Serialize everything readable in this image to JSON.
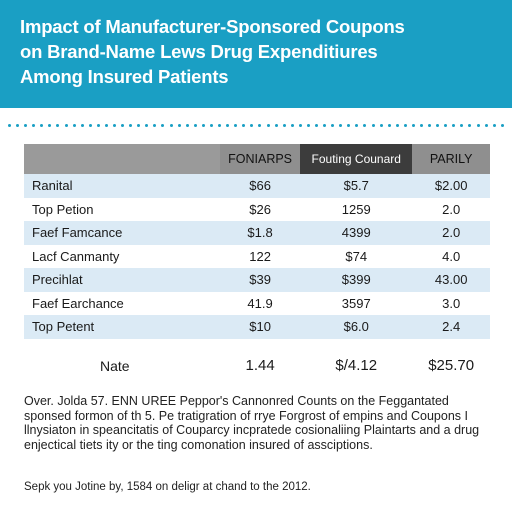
{
  "title": {
    "line1": "Impact of Manufacturer-Sponsored Coupons",
    "line2": "on Brand-Name Lews Drug Expenditiures",
    "line3": "Among Insured Patients"
  },
  "table": {
    "columns": [
      "",
      "FONIARPS",
      "Fouting Counard",
      "PARILY"
    ],
    "rows": [
      {
        "label": "Ranital",
        "c1": "$66",
        "c2": "$5.7",
        "c3": "$2.00",
        "shade": true
      },
      {
        "label": "Top Petion",
        "c1": "$26",
        "c2": "1259",
        "c3": "2.0",
        "shade": false
      },
      {
        "label": "Faef Famcance",
        "c1": "$1.8",
        "c2": "4399",
        "c3": "2.0",
        "shade": true
      },
      {
        "label": "Lacf Canmanty",
        "c1": "122",
        "c2": "$74",
        "c3": "4.0",
        "shade": false
      },
      {
        "label": "Precihlat",
        "c1": "$39",
        "c2": "$399",
        "c3": "43.00",
        "shade": true
      },
      {
        "label": "Faef Earchance",
        "c1": "41.9",
        "c2": "3597",
        "c3": "3.0",
        "shade": false
      },
      {
        "label": "Top Petent",
        "c1": "$10",
        "c2": "$6.0",
        "c3": "2.4",
        "shade": true
      }
    ],
    "total": {
      "label": "Nate",
      "c1": "1.44",
      "c2": "$/4.12",
      "c3": "$25.70"
    }
  },
  "note": "Over. Jolda 57. ENN UREE Peppor's Cannonred Counts on the Feggantated sponsed formon of th 5. Pe tratigration of rrye Forgrost of empins and Coupons I llnysiaton in speancitatis of Couparcy incpratede cosionaliing Plaintarts and a drug enjectical tiets ity or the ting comonation insured of assciptions.",
  "source": "Sepk you Jotine by, 1584 on deligr at chand to the 2012."
}
